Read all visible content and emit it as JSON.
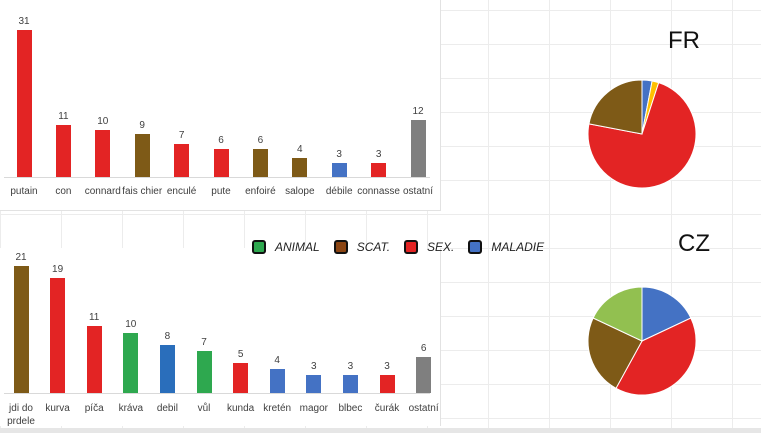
{
  "colors": {
    "animal": "#2ea84f",
    "scat": "#7e5a17",
    "sex": "#e32424",
    "maladie": "#4472c4",
    "other": "#7f7f7f",
    "yellow": "#ffc000",
    "light_green": "#92c050"
  },
  "legend": [
    {
      "label": "ANIMAL",
      "color": "#2ea84f"
    },
    {
      "label": "SCAT.",
      "color": "#8b4513"
    },
    {
      "label": "SEX.",
      "color": "#e32424"
    },
    {
      "label": "MALADIE",
      "color": "#4472c4"
    }
  ],
  "chart_data": [
    {
      "type": "bar",
      "title": "FR (bar)",
      "categories": [
        "putain",
        "con",
        "connard",
        "fais chier",
        "enculé",
        "pute",
        "enfoiré",
        "salope",
        "débile",
        "connasse",
        "ostatní"
      ],
      "values": [
        31,
        11,
        10,
        9,
        7,
        6,
        6,
        4,
        3,
        3,
        12
      ],
      "colors": [
        "#e32424",
        "#e32424",
        "#e32424",
        "#7e5a17",
        "#e32424",
        "#e32424",
        "#7e5a17",
        "#7e5a17",
        "#4472c4",
        "#e32424",
        "#7f7f7f"
      ],
      "category_groups": [
        "SEX.",
        "SEX.",
        "SEX.",
        "SCAT.",
        "SEX.",
        "SEX.",
        "SCAT.",
        "SCAT.",
        "MALADIE",
        "SEX.",
        "other"
      ]
    },
    {
      "type": "bar",
      "title": "CZ (bar)",
      "categories": [
        "jdi do prdele",
        "kurva",
        "píča",
        "kráva",
        "debil",
        "vůl",
        "kunda",
        "kretén",
        "magor",
        "blbec",
        "čurák",
        "ostatní"
      ],
      "values": [
        21,
        19,
        11,
        10,
        8,
        7,
        5,
        4,
        3,
        3,
        3,
        6
      ],
      "colors": [
        "#7e5a17",
        "#e32424",
        "#e32424",
        "#2ea84f",
        "#2a6ebb",
        "#2ea84f",
        "#e32424",
        "#4472c4",
        "#4472c4",
        "#4472c4",
        "#e32424",
        "#7f7f7f"
      ],
      "category_groups": [
        "SCAT.",
        "SEX.",
        "SEX.",
        "ANIMAL",
        "MALADIE",
        "ANIMAL",
        "SEX.",
        "MALADIE",
        "MALADIE",
        "MALADIE",
        "SEX.",
        "other"
      ]
    },
    {
      "type": "pie",
      "title": "FR",
      "labels": [
        "MALADIE",
        "other",
        "SEX.",
        "SCAT."
      ],
      "values": [
        3,
        2,
        73,
        22
      ],
      "colors": [
        "#4472c4",
        "#ffc000",
        "#e32424",
        "#7e5a17"
      ]
    },
    {
      "type": "pie",
      "title": "CZ",
      "labels": [
        "MALADIE",
        "SEX.",
        "SCAT.",
        "ANIMAL"
      ],
      "values": [
        18,
        40,
        24,
        18
      ],
      "colors": [
        "#4472c4",
        "#e32424",
        "#7e5a17",
        "#92c050"
      ]
    }
  ]
}
